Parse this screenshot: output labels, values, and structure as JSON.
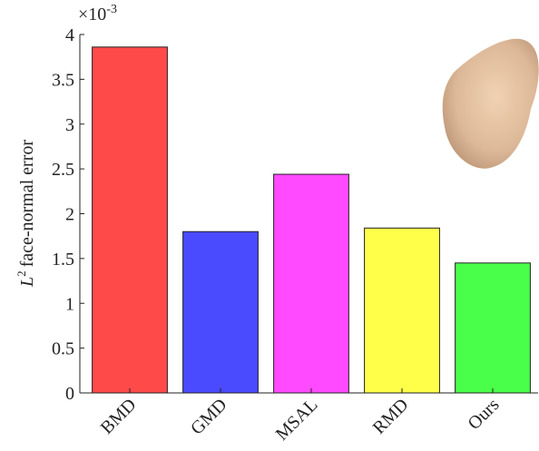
{
  "chart_data": {
    "type": "bar",
    "y_multiplier": {
      "base": "×10",
      "exponent": "-3"
    },
    "ylabel": {
      "symbol": "L",
      "exponent": "2",
      "text": "face-normal error"
    },
    "categories": [
      "BMD",
      "GMD",
      "MSAL",
      "RMD",
      "Ours"
    ],
    "values": [
      3.86,
      1.8,
      2.44,
      1.84,
      1.45
    ],
    "colors": [
      "#ff4a4a",
      "#4a4aff",
      "#ff4aff",
      "#ffff4a",
      "#4aff4a"
    ],
    "ylim": [
      0,
      4
    ],
    "yticks": [
      0,
      0.5,
      1,
      1.5,
      2,
      2.5,
      3,
      3.5,
      4
    ]
  }
}
